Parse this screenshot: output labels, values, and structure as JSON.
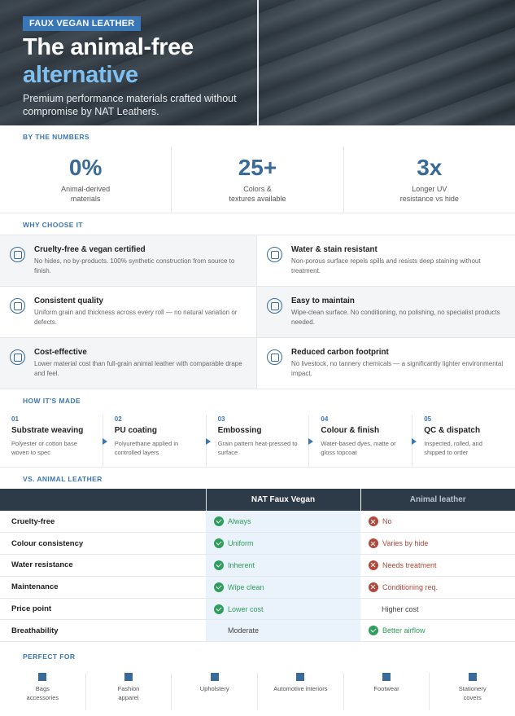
{
  "hero": {
    "badge": "FAUX VEGAN LEATHER",
    "title_line1": "The animal-free",
    "title_line2": "alternative",
    "subtitle": "Premium performance materials crafted without compromise by NAT Leathers."
  },
  "numbers": {
    "section_title": "BY THE NUMBERS",
    "items": [
      {
        "value": "0%",
        "label_line1": "Animal-derived",
        "label_line2": "materials"
      },
      {
        "value": "25+",
        "label_line1": "Colors &",
        "label_line2": "textures available"
      },
      {
        "value": "3x",
        "label_line1": "Longer UV",
        "label_line2": "resistance vs hide"
      }
    ]
  },
  "why": {
    "section_title": "WHY CHOOSE IT",
    "items": [
      {
        "title": "Cruelty-free & vegan certified",
        "desc": "No hides, no by-products. 100% synthetic construction from source to finish."
      },
      {
        "title": "Water & stain resistant",
        "desc": "Non-porous surface repels spills and resists deep staining without treatment."
      },
      {
        "title": "Consistent quality",
        "desc": "Uniform grain and thickness across every roll — no natural variation or defects."
      },
      {
        "title": "Easy to maintain",
        "desc": "Wipe-clean surface. No conditioning, no polishing, no specialist products needed."
      },
      {
        "title": "Cost-effective",
        "desc": "Lower material cost than full-grain animal leather with comparable drape and feel."
      },
      {
        "title": "Reduced carbon footprint",
        "desc": "No livestock, no tannery chemicals — a significantly lighter environmental impact."
      }
    ]
  },
  "process": {
    "section_title": "HOW IT'S MADE",
    "steps": [
      {
        "num": "01",
        "title": "Substrate weaving",
        "desc": "Polyester or cotton base woven to spec"
      },
      {
        "num": "02",
        "title": "PU coating",
        "desc": "Polyurethane applied in controlled layers"
      },
      {
        "num": "03",
        "title": "Embossing",
        "desc": "Grain pattern heat-pressed to surface"
      },
      {
        "num": "04",
        "title": "Colour & finish",
        "desc": "Water-based dyes, matte or gloss topcoat"
      },
      {
        "num": "05",
        "title": "QC & dispatch",
        "desc": "Inspected, rolled, and shipped to order"
      }
    ]
  },
  "comparison": {
    "section_title": "VS. ANIMAL LEATHER",
    "col_nat": "NAT Faux Vegan",
    "col_animal": "Animal leather",
    "rows": [
      {
        "label": "Cruelty-free",
        "nat": "Always",
        "animal": "No"
      },
      {
        "label": "Colour consistency",
        "nat": "Uniform",
        "animal": "Varies by hide"
      },
      {
        "label": "Water resistance",
        "nat": "Inherent",
        "animal": "Needs treatment"
      },
      {
        "label": "Maintenance",
        "nat": "Wipe clean",
        "animal": "Conditioning req."
      },
      {
        "label": "Price point",
        "nat": "Lower cost",
        "animal": "Higher cost"
      },
      {
        "label": "Breathability",
        "nat": "Moderate",
        "animal": "Better airflow"
      }
    ]
  },
  "uses": {
    "section_title": "PERFECT FOR",
    "items": [
      {
        "line1": "Bags",
        "line2": "accessories"
      },
      {
        "line1": "Fashion",
        "line2": "apparel"
      },
      {
        "line1": "Upholstery",
        "line2": ""
      },
      {
        "line1": "Automotive interiors",
        "line2": ""
      },
      {
        "line1": "Footwear",
        "line2": ""
      },
      {
        "line1": "Stationery",
        "line2": "covers"
      }
    ]
  },
  "colors": {
    "accent": "#3a77b7",
    "dark": "#2d3a48",
    "positive": "#2e9e5b",
    "negative": "#b5473a"
  }
}
